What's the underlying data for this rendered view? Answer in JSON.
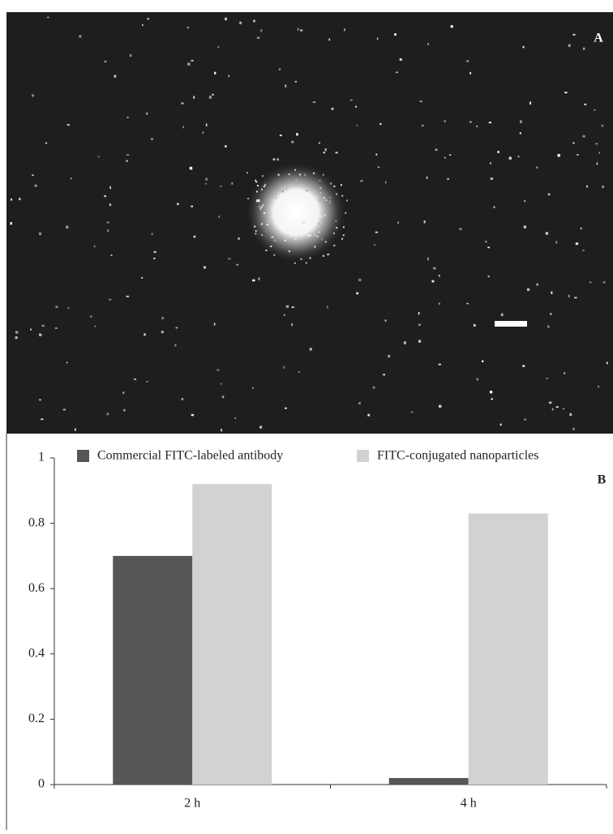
{
  "panel_labels": [
    "A",
    "B"
  ],
  "chart_data": {
    "type": "bar",
    "categories": [
      "2 h",
      "4 h"
    ],
    "series": [
      {
        "name": "Commercial FITC-labeled antibody",
        "color": "#565656",
        "values": [
          0.7,
          0.02
        ]
      },
      {
        "name": "FITC-conjugated nanoparticles",
        "color": "#d2d2d2",
        "values": [
          0.92,
          0.83
        ]
      }
    ],
    "ylim": [
      0,
      1
    ],
    "yticks": [
      0,
      0.2,
      0.4,
      0.6,
      0.8,
      1
    ]
  }
}
